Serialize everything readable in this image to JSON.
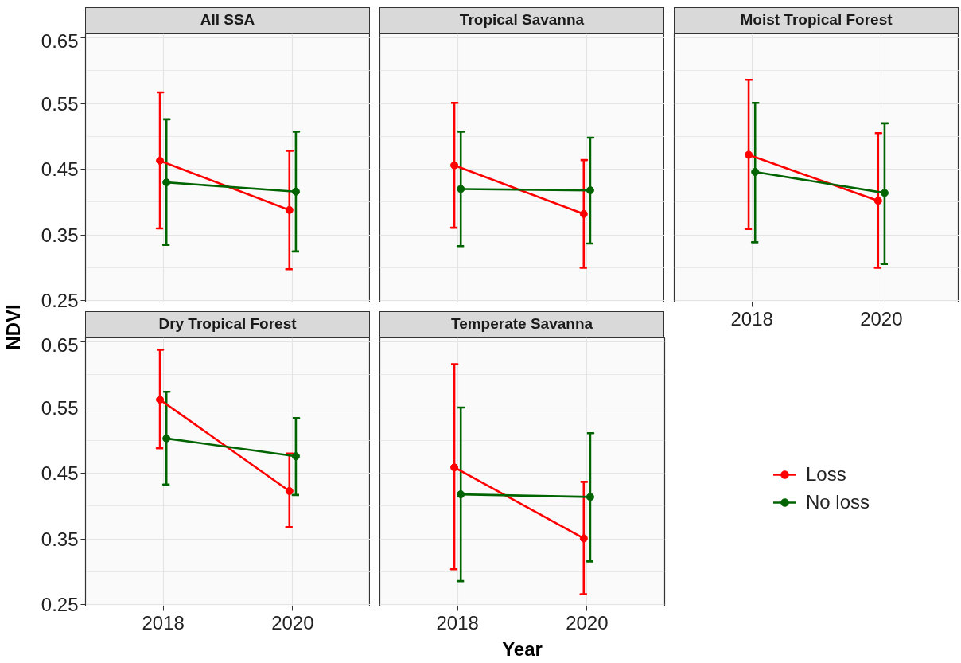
{
  "chart_data": [
    {
      "type": "line",
      "title": "All SSA",
      "ylabel": "NDVI",
      "categories": [
        "2018",
        "2020"
      ],
      "ylim": [
        0.248,
        0.656
      ],
      "yticks": [
        0.25,
        0.35,
        0.45,
        0.55,
        0.65
      ],
      "grid": true,
      "marker": "circle",
      "line_style": "solid",
      "tick_labels": "y",
      "series": [
        {
          "color": "#ff0000",
          "values": [
            0.463,
            0.388
          ],
          "errors": [
            [
              0.36,
              0.567
            ],
            [
              0.298,
              0.478
            ]
          ]
        },
        {
          "color": "#006400",
          "values": [
            0.43,
            0.416
          ],
          "errors": [
            [
              0.335,
              0.526
            ],
            [
              0.325,
              0.507
            ]
          ]
        }
      ]
    },
    {
      "type": "line",
      "title": "Tropical Savanna",
      "categories": [
        "2018",
        "2020"
      ],
      "ylim": [
        0.248,
        0.656
      ],
      "yticks": [
        0.25,
        0.35,
        0.45,
        0.55,
        0.65
      ],
      "grid": true,
      "marker": "circle",
      "line_style": "solid",
      "tick_labels": false,
      "series": [
        {
          "color": "#ff0000",
          "values": [
            0.456,
            0.382
          ],
          "errors": [
            [
              0.361,
              0.551
            ],
            [
              0.3,
              0.464
            ]
          ]
        },
        {
          "color": "#006400",
          "values": [
            0.42,
            0.418
          ],
          "errors": [
            [
              0.333,
              0.507
            ],
            [
              0.337,
              0.498
            ]
          ]
        }
      ]
    },
    {
      "type": "line",
      "title": "Moist Tropical Forest",
      "categories": [
        "2018",
        "2020"
      ],
      "ylim": [
        0.248,
        0.656
      ],
      "yticks": [
        0.25,
        0.35,
        0.45,
        0.55,
        0.65
      ],
      "grid": true,
      "marker": "circle",
      "line_style": "solid",
      "tick_labels": "x",
      "series": [
        {
          "color": "#ff0000",
          "values": [
            0.472,
            0.402
          ],
          "errors": [
            [
              0.359,
              0.586
            ],
            [
              0.3,
              0.505
            ]
          ]
        },
        {
          "color": "#006400",
          "values": [
            0.446,
            0.414
          ],
          "errors": [
            [
              0.339,
              0.551
            ],
            [
              0.306,
              0.52
            ]
          ]
        }
      ]
    },
    {
      "type": "line",
      "title": "Dry Tropical Forest",
      "categories": [
        "2018",
        "2020"
      ],
      "ylim": [
        0.248,
        0.656
      ],
      "yticks": [
        0.25,
        0.35,
        0.45,
        0.55,
        0.65
      ],
      "grid": true,
      "marker": "circle",
      "line_style": "solid",
      "series": [
        {
          "color": "#ff0000",
          "values": [
            0.562,
            0.423
          ],
          "errors": [
            [
              0.488,
              0.638
            ],
            [
              0.368,
              0.48
            ]
          ]
        },
        {
          "color": "#006400",
          "values": [
            0.503,
            0.476
          ],
          "errors": [
            [
              0.433,
              0.574
            ],
            [
              0.417,
              0.534
            ]
          ]
        }
      ]
    },
    {
      "type": "line",
      "title": "Temperate Savanna",
      "xlabel": "Year",
      "categories": [
        "2018",
        "2020"
      ],
      "ylim": [
        0.248,
        0.656
      ],
      "yticks": [
        0.25,
        0.35,
        0.45,
        0.55,
        0.65
      ],
      "grid": true,
      "marker": "circle",
      "line_style": "solid",
      "tick_labels": "x",
      "legend": "right",
      "series": [
        {
          "name": "Loss",
          "color": "#ff0000",
          "values": [
            0.459,
            0.351
          ],
          "errors": [
            [
              0.304,
              0.616
            ],
            [
              0.266,
              0.437
            ]
          ]
        },
        {
          "name": "No loss",
          "color": "#006400",
          "values": [
            0.418,
            0.414
          ],
          "errors": [
            [
              0.286,
              0.55
            ],
            [
              0.316,
              0.511
            ]
          ]
        }
      ]
    }
  ]
}
